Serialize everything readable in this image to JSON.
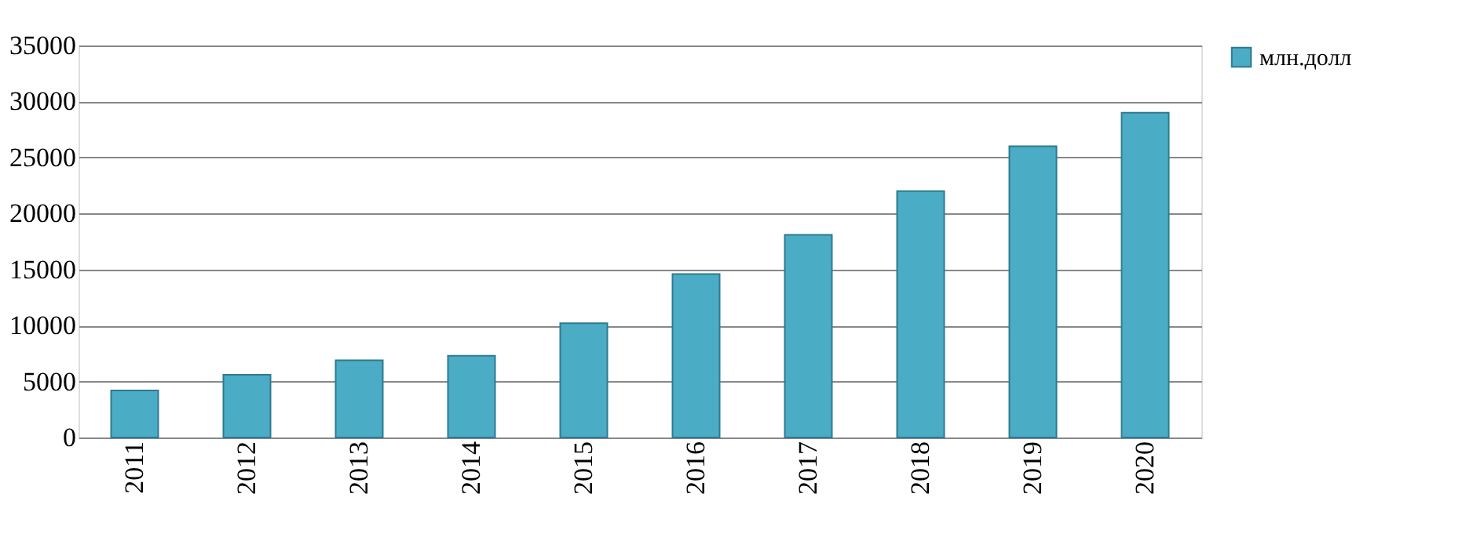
{
  "chart_data": {
    "type": "bar",
    "categories": [
      "2011",
      "2012",
      "2013",
      "2014",
      "2015",
      "2016",
      "2017",
      "2018",
      "2019",
      "2020"
    ],
    "series": [
      {
        "name": "млн.долл",
        "color": "#4bacc6",
        "values": [
          4200,
          5600,
          6900,
          7300,
          10200,
          14600,
          18100,
          22000,
          26000,
          29000
        ]
      }
    ],
    "ylim": [
      0,
      35000
    ],
    "yticks": [
      0,
      5000,
      10000,
      15000,
      20000,
      25000,
      30000,
      35000
    ],
    "grid": "y",
    "legend": "right"
  }
}
